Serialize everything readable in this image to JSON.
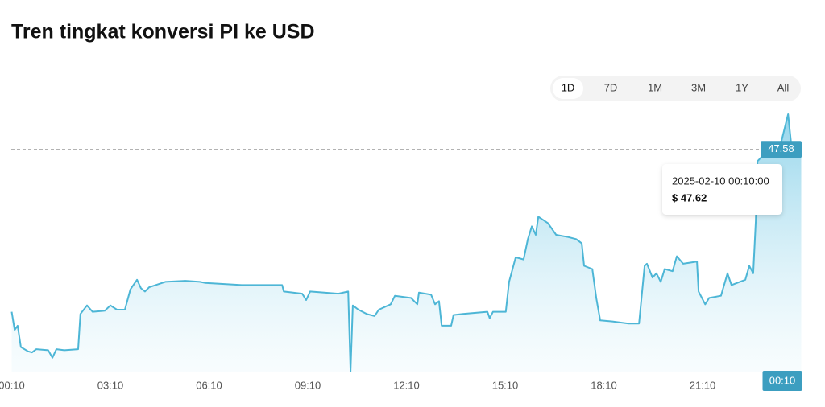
{
  "chart_data": {
    "type": "area",
    "title": "Tren tingkat konversi PI ke USD",
    "ranges": [
      "1D",
      "7D",
      "1M",
      "3M",
      "1Y",
      "All"
    ],
    "selected_range": "1D",
    "x": [
      0,
      0.09,
      0.18,
      0.28,
      0.5,
      0.62,
      0.75,
      1.11,
      1.24,
      1.36,
      1.6,
      2.02,
      2.09,
      2.29,
      2.46,
      2.83,
      3.0,
      3.2,
      3.44,
      3.61,
      3.81,
      3.93,
      4.05,
      4.18,
      4.67,
      5.28,
      5.72,
      5.89,
      6.99,
      8.22,
      8.27,
      8.83,
      8.95,
      9.07,
      9.93,
      10.23,
      10.3,
      10.37,
      10.54,
      10.79,
      11.03,
      11.16,
      11.52,
      11.65,
      12.14,
      12.33,
      12.38,
      12.75,
      12.87,
      12.99,
      13.07,
      13.36,
      13.43,
      13.72,
      14.46,
      14.53,
      14.63,
      15.02,
      15.12,
      15.32,
      15.56,
      15.69,
      15.81,
      15.93,
      16.01,
      16.3,
      16.55,
      16.91,
      17.16,
      17.33,
      17.4,
      17.65,
      17.77,
      17.89,
      18.26,
      18.75,
      19.07,
      19.24,
      19.31,
      19.48,
      19.6,
      19.73,
      19.85,
      20.09,
      20.22,
      20.41,
      20.83,
      20.88,
      21.08,
      21.2,
      21.56,
      21.76,
      21.88,
      22.3,
      22.42,
      22.54,
      22.62,
      22.67,
      22.92,
      23.16,
      23.4,
      23.6,
      23.7,
      24
    ],
    "series": [
      {
        "color": "#4db6d6",
        "values": [
          46.06,
          45.89,
          45.93,
          45.73,
          45.69,
          45.68,
          45.71,
          45.7,
          45.63,
          45.71,
          45.7,
          45.71,
          46.04,
          46.12,
          46.06,
          46.07,
          46.12,
          46.08,
          46.08,
          46.27,
          46.36,
          46.28,
          46.25,
          46.29,
          46.34,
          46.35,
          46.34,
          46.33,
          46.31,
          46.31,
          46.25,
          46.23,
          46.17,
          46.25,
          46.23,
          46.25,
          45.5,
          46.12,
          46.08,
          46.04,
          46.02,
          46.08,
          46.13,
          46.21,
          46.19,
          46.13,
          46.24,
          46.22,
          46.13,
          46.16,
          45.93,
          45.93,
          46.03,
          46.04,
          46.06,
          46.0,
          46.06,
          46.06,
          46.34,
          46.57,
          46.55,
          46.74,
          46.86,
          46.78,
          46.95,
          46.89,
          46.78,
          46.76,
          46.74,
          46.7,
          46.49,
          46.46,
          46.19,
          45.98,
          45.97,
          45.95,
          45.95,
          46.49,
          46.51,
          46.38,
          46.42,
          46.34,
          46.46,
          46.44,
          46.58,
          46.51,
          46.53,
          46.25,
          46.13,
          46.19,
          46.21,
          46.42,
          46.31,
          46.36,
          46.49,
          46.42,
          46.91,
          47.47,
          47.55,
          47.59,
          47.66,
          47.91,
          47.62,
          47.62
        ]
      }
    ],
    "xlim": [
      0,
      24
    ],
    "xticks": [
      {
        "value": 0,
        "label": "00:10"
      },
      {
        "value": 3,
        "label": "03:10"
      },
      {
        "value": 6,
        "label": "06:10"
      },
      {
        "value": 9,
        "label": "09:10"
      },
      {
        "value": 12,
        "label": "12:10"
      },
      {
        "value": 15,
        "label": "15:10"
      },
      {
        "value": 18,
        "label": "18:10"
      },
      {
        "value": 21,
        "label": "21:10"
      }
    ],
    "ylim": [
      45.5,
      48.0
    ],
    "current_value": 47.58,
    "crosshair_x": {
      "value": 24,
      "label": "00:10"
    },
    "tooltip": {
      "date": "2025-02-10 00:10:00",
      "price": {
        "value": 47.62,
        "label": "$ 47.62"
      }
    }
  }
}
